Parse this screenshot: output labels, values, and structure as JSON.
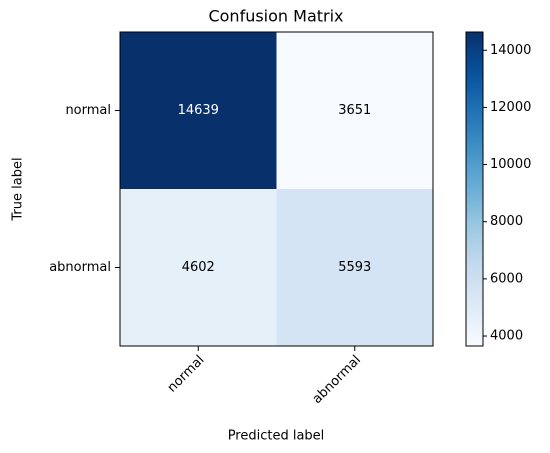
{
  "chart_data": {
    "type": "heatmap",
    "title": "Confusion Matrix",
    "xlabel": "Predicted label",
    "ylabel": "True label",
    "x_categories": [
      "normal",
      "abnormal"
    ],
    "y_categories": [
      "normal",
      "abnormal"
    ],
    "values": [
      [
        14639,
        3651
      ],
      [
        4602,
        5593
      ]
    ],
    "colormap": "Blues",
    "clim": [
      3651,
      14639
    ],
    "colorbar_ticks": [
      4000,
      6000,
      8000,
      10000,
      12000,
      14000
    ]
  }
}
